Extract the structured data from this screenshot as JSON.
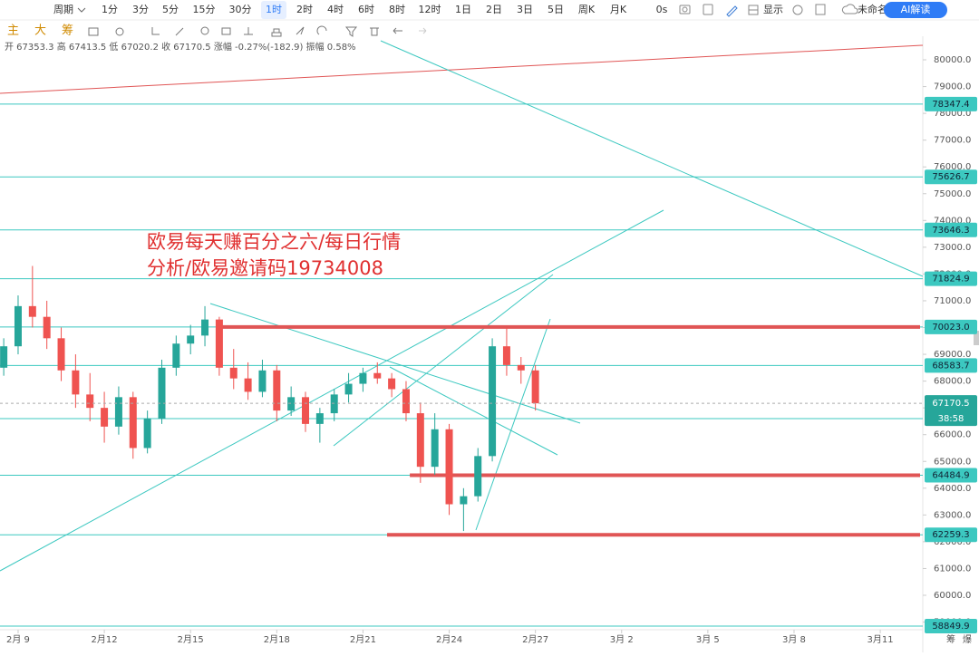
{
  "toolbar": {
    "period": "周期",
    "intervals": [
      "1分",
      "3分",
      "5分",
      "15分",
      "30分",
      "1时",
      "2时",
      "4时",
      "6时",
      "8时",
      "12时",
      "1日",
      "2日",
      "3日",
      "5日",
      "周K",
      "月K"
    ],
    "selected_index": 5,
    "timer": "0s",
    "display": "显示",
    "layout_name": "未命名",
    "ai": "AI解读"
  },
  "indicators": [
    "主",
    "大",
    "筹"
  ],
  "ohlc_info": "开 67353.3 高 67413.5 低 67020.2 收 67170.5 涨幅 -0.27%(-182.9) 振幅 0.58%",
  "corner": [
    "筹",
    "爆"
  ],
  "chart_data": {
    "type": "candlestick",
    "annotation": [
      "欧易每天赚百分之六/每日行情",
      "分析/欧易邀请码19734008"
    ],
    "up_color": "#26a69a",
    "down_color": "#ef5350",
    "x": [
      8.5,
      9,
      9.5,
      10,
      10.5,
      11,
      11.5,
      12,
      12.5,
      13,
      13.5,
      14,
      14.5,
      15,
      15.5,
      16,
      16.5,
      17,
      17.5,
      18,
      18.5,
      19,
      19.5,
      20,
      20.5,
      21,
      21.5,
      22,
      22.5,
      23,
      23.5,
      24,
      24.5,
      25,
      25.5,
      26,
      26.5,
      27
    ],
    "open": [
      68500,
      69300,
      70800,
      70400,
      69600,
      68400,
      67500,
      67000,
      66300,
      67400,
      65500,
      66600,
      68500,
      69400,
      69700,
      70300,
      68500,
      68100,
      67600,
      68400,
      66900,
      67400,
      66400,
      66800,
      67500,
      67900,
      68300,
      68100,
      67700,
      66800,
      64800,
      66200,
      63400,
      63700,
      65200,
      69300,
      68600,
      68400
    ],
    "high": [
      69600,
      71200,
      72300,
      71000,
      70000,
      69000,
      68300,
      67600,
      67800,
      67600,
      66900,
      68800,
      69700,
      70100,
      70800,
      70400,
      69200,
      68700,
      68800,
      68600,
      67800,
      67600,
      67000,
      67700,
      68300,
      68500,
      68700,
      68300,
      68000,
      67200,
      66800,
      66400,
      64000,
      65500,
      69600,
      70000,
      68900,
      68600
    ],
    "low": [
      68200,
      69000,
      70000,
      69200,
      68000,
      67000,
      66500,
      65700,
      66000,
      65100,
      65300,
      66400,
      68200,
      69000,
      69300,
      68200,
      67700,
      67300,
      67400,
      66500,
      66700,
      66100,
      65700,
      66500,
      67200,
      67600,
      67900,
      67400,
      66500,
      64200,
      64500,
      63000,
      62400,
      63500,
      65000,
      68200,
      67900,
      66900
    ],
    "close": [
      69300,
      70800,
      70400,
      69600,
      68400,
      67500,
      67000,
      66300,
      67400,
      65500,
      66600,
      68500,
      69400,
      69700,
      70300,
      68500,
      68100,
      67600,
      68400,
      66900,
      67400,
      66400,
      66800,
      67500,
      67900,
      68300,
      68100,
      67700,
      66800,
      64800,
      66200,
      63400,
      63700,
      65200,
      69300,
      68600,
      68400,
      67170.5
    ],
    "xlim": [
      8.37,
      40.48
    ],
    "xticks": [
      {
        "value": 9,
        "label": "2月 9"
      },
      {
        "value": 12,
        "label": "2月12"
      },
      {
        "value": 15,
        "label": "2月15"
      },
      {
        "value": 18,
        "label": "2月18"
      },
      {
        "value": 21,
        "label": "2月21"
      },
      {
        "value": 24,
        "label": "2月24"
      },
      {
        "value": 27,
        "label": "2月27"
      },
      {
        "value": 30,
        "label": "3月 2"
      },
      {
        "value": 33,
        "label": "3月 5"
      },
      {
        "value": 36,
        "label": "3月 8"
      },
      {
        "value": 39,
        "label": "3月11"
      }
    ],
    "ylim": [
      58714,
      80880
    ],
    "yticks": [
      {
        "value": 80000,
        "label": "80000.0"
      },
      {
        "value": 79000,
        "label": "79000.0"
      },
      {
        "value": 78000,
        "label": "78000.0"
      },
      {
        "value": 77000,
        "label": "77000.0"
      },
      {
        "value": 76000,
        "label": "76000.0"
      },
      {
        "value": 75000,
        "label": "75000.0"
      },
      {
        "value": 74000,
        "label": "74000.0"
      },
      {
        "value": 73000,
        "label": "73000.0"
      },
      {
        "value": 72000,
        "label": "72000.0"
      },
      {
        "value": 71000,
        "label": "71000.0"
      },
      {
        "value": 70000,
        "label": "70000.0"
      },
      {
        "value": 69000,
        "label": "69000.0"
      },
      {
        "value": 68000,
        "label": "68000.0"
      },
      {
        "value": 67000,
        "label": "67000.0"
      },
      {
        "value": 66000,
        "label": "66000.0"
      },
      {
        "value": 65000,
        "label": "65000.0"
      },
      {
        "value": 64000,
        "label": "64000.0"
      },
      {
        "value": 63000,
        "label": "63000.0"
      },
      {
        "value": 62000,
        "label": "62000.0"
      },
      {
        "value": 61000,
        "label": "61000.0"
      },
      {
        "value": 60000,
        "label": "60000.0"
      },
      {
        "value": 59000,
        "label": "59000.0"
      }
    ],
    "price_lines": [
      {
        "value": 78347.4,
        "label": "78347.4"
      },
      {
        "value": 75626.7,
        "label": "75626.7"
      },
      {
        "value": 73646.3,
        "label": "73646.3"
      },
      {
        "value": 71824.9,
        "label": "71824.9"
      },
      {
        "value": 70023.0,
        "label": "70023.0",
        "highlight_from": 15.94
      },
      {
        "value": 68583.7,
        "label": "68583.7"
      },
      {
        "value": 66599
      },
      {
        "value": 64484.9,
        "label": "64484.9",
        "highlight_from": 22.63
      },
      {
        "value": 62259.3,
        "label": "62259.3",
        "highlight_from": 21.84
      },
      {
        "value": 58849.9,
        "label": "58849.9"
      }
    ],
    "line_color": "#3cc8c0",
    "highlight_color": "#e05555",
    "last_price": {
      "value": 67170.5,
      "label": "67170.5",
      "countdown": "38:58",
      "color": "#26a69a"
    }
  }
}
